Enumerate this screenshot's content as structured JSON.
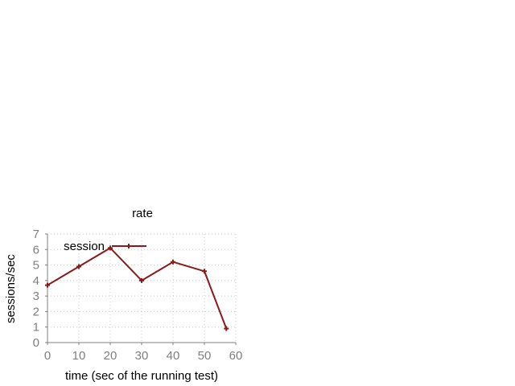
{
  "chart_data": {
    "type": "line",
    "title": "rate",
    "xlabel": "time (sec of the running test)",
    "ylabel": "sessions/sec",
    "xlim": [
      0,
      60
    ],
    "ylim": [
      0,
      7
    ],
    "xticks": [
      "0",
      "10",
      "20",
      "30",
      "40",
      "50",
      "60"
    ],
    "yticks": [
      "0",
      "1",
      "2",
      "3",
      "4",
      "5",
      "6",
      "7"
    ],
    "grid": true,
    "legend_position": "top-left",
    "series": [
      {
        "name": "session",
        "color": "#8b1a1a",
        "x": [
          0,
          10,
          20,
          30,
          40,
          50,
          57
        ],
        "y": [
          3.7,
          4.9,
          6.1,
          4.0,
          5.2,
          4.6,
          0.9
        ]
      }
    ]
  }
}
